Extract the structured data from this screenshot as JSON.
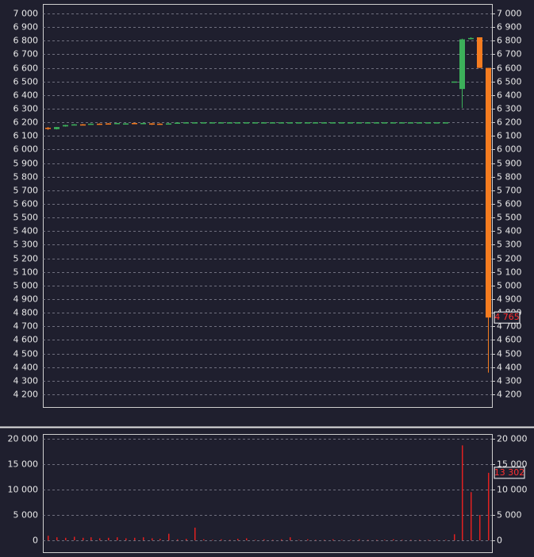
{
  "chart_data": [
    {
      "type": "candlestick",
      "open": [
        6160,
        6150,
        6170,
        6180,
        6185,
        6185,
        6190,
        6192,
        6188,
        6190,
        6195,
        6190,
        6192,
        6190,
        6188,
        6192,
        6200,
        6200,
        6200,
        6200,
        6200,
        6200,
        6200,
        6200,
        6200,
        6200,
        6200,
        6200,
        6200,
        6200,
        6200,
        6200,
        6200,
        6200,
        6200,
        6200,
        6200,
        6200,
        6200,
        6200,
        6200,
        6200,
        6200,
        6200,
        6200,
        6200,
        6200,
        6500,
        6445,
        6815,
        6825,
        6600
      ],
      "high": [
        6165,
        6165,
        6182,
        6187,
        6187,
        6192,
        6192,
        6194,
        6196,
        6194,
        6197,
        6197,
        6194,
        6192,
        6194,
        6200,
        6200,
        6200,
        6200,
        6200,
        6200,
        6200,
        6200,
        6200,
        6200,
        6200,
        6200,
        6200,
        6200,
        6200,
        6200,
        6200,
        6200,
        6200,
        6200,
        6200,
        6200,
        6200,
        6200,
        6200,
        6200,
        6200,
        6200,
        6200,
        6200,
        6200,
        6200,
        6500,
        6815,
        6825,
        6825,
        6600
      ],
      "low": [
        6145,
        6148,
        6168,
        6178,
        6178,
        6183,
        6183,
        6186,
        6186,
        6188,
        6188,
        6188,
        6181,
        6186,
        6186,
        6190,
        6200,
        6200,
        6200,
        6200,
        6200,
        6200,
        6200,
        6200,
        6200,
        6200,
        6200,
        6200,
        6200,
        6200,
        6200,
        6200,
        6200,
        6200,
        6200,
        6200,
        6200,
        6200,
        6200,
        6200,
        6200,
        6200,
        6200,
        6200,
        6200,
        6200,
        6200,
        6500,
        6305,
        6810,
        6600,
        4360
      ],
      "close": [
        6155,
        6165,
        6180,
        6185,
        6180,
        6190,
        6185,
        6188,
        6195,
        6192,
        6190,
        6195,
        6183,
        6188,
        6192,
        6198,
        6200,
        6200,
        6200,
        6200,
        6200,
        6200,
        6200,
        6200,
        6200,
        6200,
        6200,
        6200,
        6200,
        6200,
        6200,
        6200,
        6200,
        6200,
        6200,
        6200,
        6200,
        6200,
        6200,
        6200,
        6200,
        6200,
        6200,
        6200,
        6200,
        6200,
        6200,
        6500,
        6810,
        6820,
        6600,
        4765
      ],
      "up_color": "#3cb05a",
      "down_color": "#f57c20",
      "ylim": [
        4107,
        7070
      ],
      "yticks": [
        {
          "value": 4200,
          "label": "4 200"
        },
        {
          "value": 4300,
          "label": "4 300"
        },
        {
          "value": 4400,
          "label": "4 400"
        },
        {
          "value": 4500,
          "label": "4 500"
        },
        {
          "value": 4600,
          "label": "4 600"
        },
        {
          "value": 4700,
          "label": "4 700"
        },
        {
          "value": 4800,
          "label": "4 800"
        },
        {
          "value": 4900,
          "label": "4 900"
        },
        {
          "value": 5000,
          "label": "5 000"
        },
        {
          "value": 5100,
          "label": "5 100"
        },
        {
          "value": 5200,
          "label": "5 200"
        },
        {
          "value": 5300,
          "label": "5 300"
        },
        {
          "value": 5400,
          "label": "5 400"
        },
        {
          "value": 5500,
          "label": "5 500"
        },
        {
          "value": 5600,
          "label": "5 600"
        },
        {
          "value": 5700,
          "label": "5 700"
        },
        {
          "value": 5800,
          "label": "5 800"
        },
        {
          "value": 5900,
          "label": "5 900"
        },
        {
          "value": 6000,
          "label": "6 000"
        },
        {
          "value": 6100,
          "label": "6 100"
        },
        {
          "value": 6200,
          "label": "6 200"
        },
        {
          "value": 6300,
          "label": "6 300"
        },
        {
          "value": 6400,
          "label": "6 400"
        },
        {
          "value": 6500,
          "label": "6 500"
        },
        {
          "value": 6600,
          "label": "6 600"
        },
        {
          "value": 6700,
          "label": "6 700"
        },
        {
          "value": 6800,
          "label": "6 800"
        },
        {
          "value": 6900,
          "label": "6 900"
        },
        {
          "value": 7000,
          "label": "7 000"
        }
      ],
      "grid": true,
      "last_label": "4 765"
    },
    {
      "type": "bar",
      "values": [
        900,
        600,
        500,
        700,
        500,
        600,
        400,
        500,
        600,
        400,
        500,
        600,
        400,
        300,
        1300,
        200,
        300,
        2500,
        200,
        100,
        200,
        100,
        300,
        400,
        100,
        200,
        100,
        200,
        600,
        100,
        200,
        100,
        100,
        200,
        100,
        100,
        200,
        100,
        100,
        100,
        200,
        100,
        100,
        100,
        100,
        100,
        100,
        1200,
        18700,
        9500,
        5000,
        13302
      ],
      "color": "#e02020",
      "ylim": [
        -2500,
        20940
      ],
      "yticks": [
        0,
        {
          "value": 5000,
          "label": "5 000"
        },
        {
          "value": 10000,
          "label": "10 000"
        },
        {
          "value": 15000,
          "label": "15 000"
        },
        {
          "value": 20000,
          "label": "20 000"
        }
      ],
      "grid": true,
      "last_label": "13 302"
    }
  ]
}
